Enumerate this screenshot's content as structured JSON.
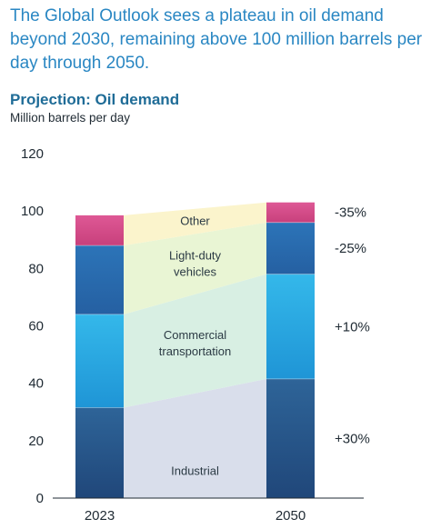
{
  "headline": "The Global Outlook sees a plateau in oil demand beyond 2030, remaining above 100 million barrels per day through 2050.",
  "chart_data": {
    "type": "bar",
    "stacked": true,
    "title": "Projection: Oil demand",
    "ylabel": "Million barrels per day",
    "xlabel": "",
    "categories": [
      "2023",
      "2050"
    ],
    "ylim": [
      0,
      120
    ],
    "yticks": [
      0,
      20,
      40,
      60,
      80,
      100,
      120
    ],
    "grid": false,
    "series": [
      {
        "name": "Industrial",
        "label_lines": [
          "Industrial"
        ],
        "values": [
          31.5,
          41.5
        ],
        "change": "+30%",
        "color": "#2d5a8f",
        "band_color": "#d9deeb"
      },
      {
        "name": "Commercial transportation",
        "label_lines": [
          "Commercial",
          "transportation"
        ],
        "values": [
          32.5,
          36.5
        ],
        "change": "+10%",
        "color": "#2aa4e0",
        "band_color": "#d8efe3"
      },
      {
        "name": "Light-duty vehicles",
        "label_lines": [
          "Light-duty",
          "vehicles"
        ],
        "values": [
          24.0,
          18.0
        ],
        "change": "-25%",
        "color": "#2a6fb5",
        "band_color": "#e9f5d4"
      },
      {
        "name": "Other",
        "label_lines": [
          "Other"
        ],
        "values": [
          10.5,
          7.0
        ],
        "change": "-35%",
        "color": "#d94c8a",
        "band_color": "#fbf4cc"
      }
    ]
  }
}
